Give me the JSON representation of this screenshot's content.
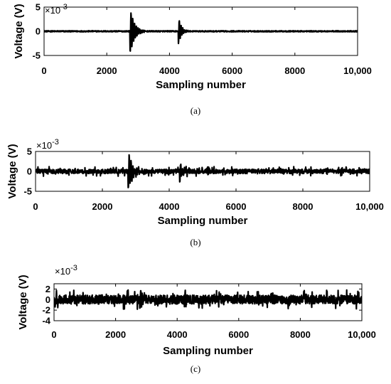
{
  "chart_data": [
    {
      "type": "line",
      "panel_label": "(a)",
      "xlabel": "Sampling number",
      "ylabel": "Voltage (V)",
      "y_multiplier": "×10",
      "y_exponent": "-3",
      "xlim": [
        0,
        10000
      ],
      "ylim": [
        -5,
        5
      ],
      "xticks": [
        0,
        2000,
        4000,
        6000,
        8000,
        10000
      ],
      "xtick_labels": [
        "0",
        "2000",
        "4000",
        "6000",
        "8000",
        "10,000"
      ],
      "yticks": [
        -5,
        0,
        5
      ],
      "ytick_labels": [
        "-5",
        "0",
        "5"
      ],
      "noise_amplitude": 0.12,
      "bursts": [
        {
          "center": 2760,
          "peak": 4.4,
          "length": 450
        },
        {
          "center": 4300,
          "peak": 2.6,
          "length": 300
        }
      ]
    },
    {
      "type": "line",
      "panel_label": "(b)",
      "xlabel": "Sampling number",
      "ylabel": "Voltage (V)",
      "y_multiplier": "×10",
      "y_exponent": "-3",
      "xlim": [
        0,
        10000
      ],
      "ylim": [
        -5,
        5
      ],
      "xticks": [
        0,
        2000,
        4000,
        6000,
        8000,
        10000
      ],
      "xtick_labels": [
        "0",
        "2000",
        "4000",
        "6000",
        "8000",
        "10,000"
      ],
      "yticks": [
        -5,
        0,
        5
      ],
      "ytick_labels": [
        "-5",
        "0",
        "5"
      ],
      "noise_amplitude": 0.55,
      "bursts": [
        {
          "center": 2790,
          "peak": 4.6,
          "length": 420
        },
        {
          "center": 4330,
          "peak": 2.4,
          "length": 300
        }
      ]
    },
    {
      "type": "line",
      "panel_label": "(c)",
      "xlabel": "Sampling number",
      "ylabel": "Voltage (V)",
      "y_multiplier": "×10",
      "y_exponent": "-3",
      "xlim": [
        0,
        10000
      ],
      "ylim": [
        -4,
        3
      ],
      "xticks": [
        0,
        2000,
        4000,
        6000,
        8000,
        10000
      ],
      "xtick_labels": [
        "0",
        "2000",
        "4000",
        "6000",
        "8000",
        "10,000"
      ],
      "yticks": [
        -4,
        -2,
        0,
        2
      ],
      "ytick_labels": [
        "-4",
        "-2",
        "0",
        "2"
      ],
      "noise_amplitude": 0.85,
      "bursts": [
        {
          "center": 2800,
          "peak": 2.4,
          "length": 150
        },
        {
          "center": 4250,
          "peak": 1.6,
          "length": 150
        }
      ]
    }
  ]
}
